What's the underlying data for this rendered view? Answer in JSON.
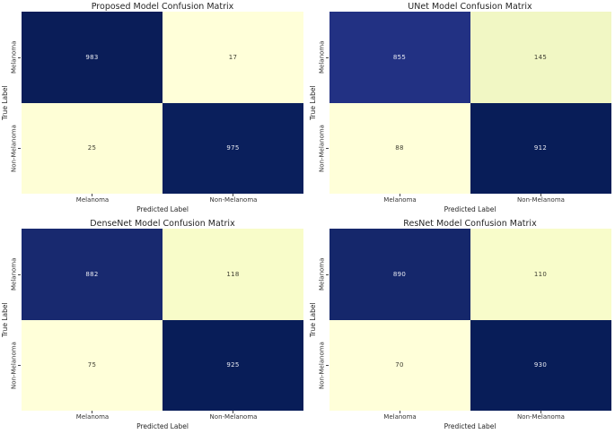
{
  "figure": {
    "background_color": "#ffffff",
    "text_color": "#262626",
    "layout": "2x2 grid of confusion-matrix heatmaps"
  },
  "chart_data": [
    {
      "type": "heatmap",
      "title": "Proposed Model Confusion Matrix",
      "xlabel": "Predicted Label",
      "ylabel": "True Label",
      "x_categories": [
        "Melanoma",
        "Non-Melanoma"
      ],
      "y_categories": [
        "Melanoma",
        "Non-Melanoma"
      ],
      "values": [
        [
          983,
          17
        ],
        [
          25,
          975
        ]
      ],
      "cell_colors": [
        [
          "#0a1d58",
          "#ffffd9"
        ],
        [
          "#fefed6",
          "#0a1f5c"
        ]
      ],
      "text_colors": [
        [
          "#e9ebf3",
          "#3d3d30"
        ],
        [
          "#3d3d30",
          "#e9ebf3"
        ]
      ]
    },
    {
      "type": "heatmap",
      "title": "UNet Model Confusion Matrix",
      "xlabel": "Predicted Label",
      "ylabel": "True Label",
      "x_categories": [
        "Melanoma",
        "Non-Melanoma"
      ],
      "y_categories": [
        "Melanoma",
        "Non-Melanoma"
      ],
      "values": [
        [
          855,
          145
        ],
        [
          88,
          912
        ]
      ],
      "cell_colors": [
        [
          "#223183",
          "#f1f7c4"
        ],
        [
          "#ffffd9",
          "#081d58"
        ]
      ],
      "text_colors": [
        [
          "#e9ebf3",
          "#3d3d30"
        ],
        [
          "#3d3d30",
          "#e9ebf3"
        ]
      ]
    },
    {
      "type": "heatmap",
      "title": "DenseNet Model Confusion Matrix",
      "xlabel": "Predicted Label",
      "ylabel": "True Label",
      "x_categories": [
        "Melanoma",
        "Non-Melanoma"
      ],
      "y_categories": [
        "Melanoma",
        "Non-Melanoma"
      ],
      "values": [
        [
          882,
          118
        ],
        [
          75,
          925
        ]
      ],
      "cell_colors": [
        [
          "#18296f",
          "#f8fcc9"
        ],
        [
          "#ffffd9",
          "#081d58"
        ]
      ],
      "text_colors": [
        [
          "#e9ebf3",
          "#3d3d30"
        ],
        [
          "#3d3d30",
          "#e9ebf3"
        ]
      ]
    },
    {
      "type": "heatmap",
      "title": "ResNet Model Confusion Matrix",
      "xlabel": "Predicted Label",
      "ylabel": "True Label",
      "x_categories": [
        "Melanoma",
        "Non-Melanoma"
      ],
      "y_categories": [
        "Melanoma",
        "Non-Melanoma"
      ],
      "values": [
        [
          890,
          110
        ],
        [
          70,
          930
        ]
      ],
      "cell_colors": [
        [
          "#15276b",
          "#f8fcca"
        ],
        [
          "#ffffd9",
          "#081d58"
        ]
      ],
      "text_colors": [
        [
          "#e9ebf3",
          "#3d3d30"
        ],
        [
          "#3d3d30",
          "#e9ebf3"
        ]
      ]
    }
  ]
}
